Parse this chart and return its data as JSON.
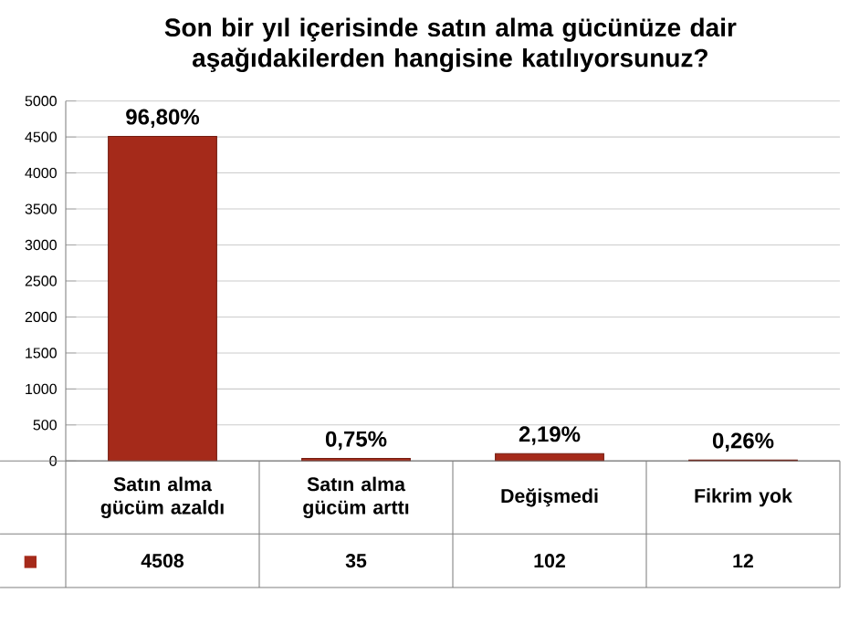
{
  "chart_data": {
    "type": "bar",
    "title": "Son bir yıl içerisinde satın alma gücünüze dair aşağıdakilerden hangisine katılıyorsunuz?",
    "categories": [
      "Satın alma gücüm azaldı",
      "Satın alma gücüm arttı",
      "Değişmedi",
      "Fikrim yok"
    ],
    "values": [
      4508,
      35,
      102,
      12
    ],
    "value_labels": [
      "4508",
      "35",
      "102",
      "12"
    ],
    "annotations": [
      {
        "text": "96,80%",
        "x": "Satın alma gücüm azaldı",
        "y": 4508
      },
      {
        "text": "0,75%",
        "x": "Satın alma gücüm arttı",
        "y": 35
      },
      {
        "text": "2,19%",
        "x": "Değişmedi",
        "y": 102
      },
      {
        "text": "0,26%",
        "x": "Fikrim yok",
        "y": 12
      }
    ],
    "color": "#a52a1a",
    "grid": "y",
    "ylim": [
      0,
      5000
    ],
    "yticks": [
      0,
      500,
      1000,
      1500,
      2000,
      2500,
      3000,
      3500,
      4000,
      4500,
      5000
    ]
  }
}
